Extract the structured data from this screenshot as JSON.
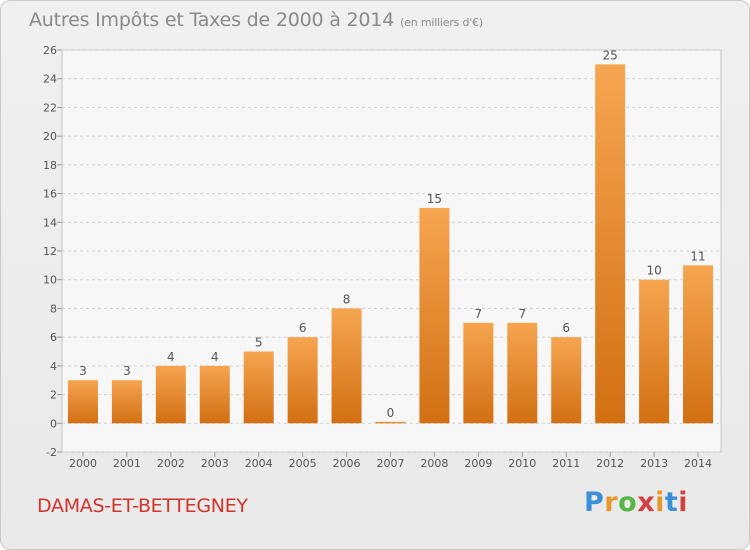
{
  "header": {
    "title": "Autres Impôts et Taxes de 2000 à 2014",
    "subtitle": "(en milliers d'€)"
  },
  "footer": {
    "commune": "DAMAS-ET-BETTEGNEY",
    "logo_letters": [
      "P",
      "r",
      "o",
      "x",
      "i",
      "t",
      "i"
    ],
    "logo_colors": [
      "#3b8fd6",
      "#e8982a",
      "#58b548",
      "#d63f3f",
      "#e8982a",
      "#3b8fd6",
      "#d63f3f"
    ]
  },
  "chart_data": {
    "type": "bar",
    "title": "Autres Impôts et Taxes de 2000 à 2014",
    "subtitle": "(en milliers d'€)",
    "categories": [
      "2000",
      "2001",
      "2002",
      "2003",
      "2004",
      "2005",
      "2006",
      "2007",
      "2008",
      "2009",
      "2010",
      "2011",
      "2012",
      "2013",
      "2014"
    ],
    "values": [
      3,
      3,
      4,
      4,
      5,
      6,
      8,
      0,
      15,
      7,
      7,
      6,
      25,
      10,
      11
    ],
    "data_labels": [
      "3",
      "3",
      "4",
      "4",
      "5",
      "6",
      "8",
      "0",
      "15",
      "7",
      "7",
      "6",
      "25",
      "10",
      "11"
    ],
    "xlabel": "",
    "ylabel": "",
    "ylim": [
      -2,
      26
    ],
    "yticks": [
      "-2",
      "0",
      "2",
      "4",
      "6",
      "8",
      "10",
      "12",
      "14",
      "16",
      "18",
      "20",
      "22",
      "24",
      "26"
    ],
    "grid": "horizontal-dashed",
    "bar_color_top": "#f6a550",
    "bar_color_bottom": "#d26f12"
  }
}
